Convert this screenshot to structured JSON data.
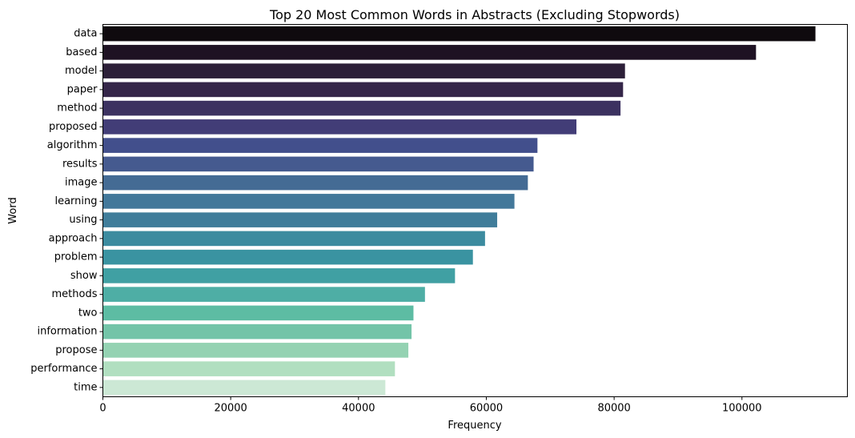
{
  "chart_data": {
    "type": "bar",
    "orientation": "horizontal",
    "title": "Top 20 Most Common Words in Abstracts (Excluding Stopwords)",
    "xlabel": "Frequency",
    "ylabel": "Word",
    "xlim": [
      0,
      116500
    ],
    "xticks": [
      0,
      20000,
      40000,
      60000,
      80000,
      100000
    ],
    "xtick_labels": [
      "0",
      "20000",
      "40000",
      "60000",
      "80000",
      "100000"
    ],
    "grid": false,
    "colormap": "mako (dark to light)",
    "categories": [
      "data",
      "based",
      "model",
      "paper",
      "method",
      "proposed",
      "algorithm",
      "results",
      "image",
      "learning",
      "using",
      "approach",
      "problem",
      "show",
      "methods",
      "two",
      "information",
      "propose",
      "performance",
      "time"
    ],
    "values": [
      111500,
      102200,
      81700,
      81400,
      81000,
      74100,
      68000,
      67400,
      66500,
      64400,
      61700,
      59800,
      57900,
      55100,
      50400,
      48600,
      48300,
      47800,
      45700,
      44200
    ],
    "colors": [
      "#0f0a0e",
      "#1e1223",
      "#2c1f38",
      "#352649",
      "#3c3260",
      "#423d77",
      "#424f8c",
      "#455a8f",
      "#446b94",
      "#43789a",
      "#407d9a",
      "#3c8b9f",
      "#3a93a1",
      "#40a0a3",
      "#4eaea5",
      "#5dbca3",
      "#73c4a8",
      "#94d2b2",
      "#b1dfc0",
      "#cce8d5"
    ]
  }
}
